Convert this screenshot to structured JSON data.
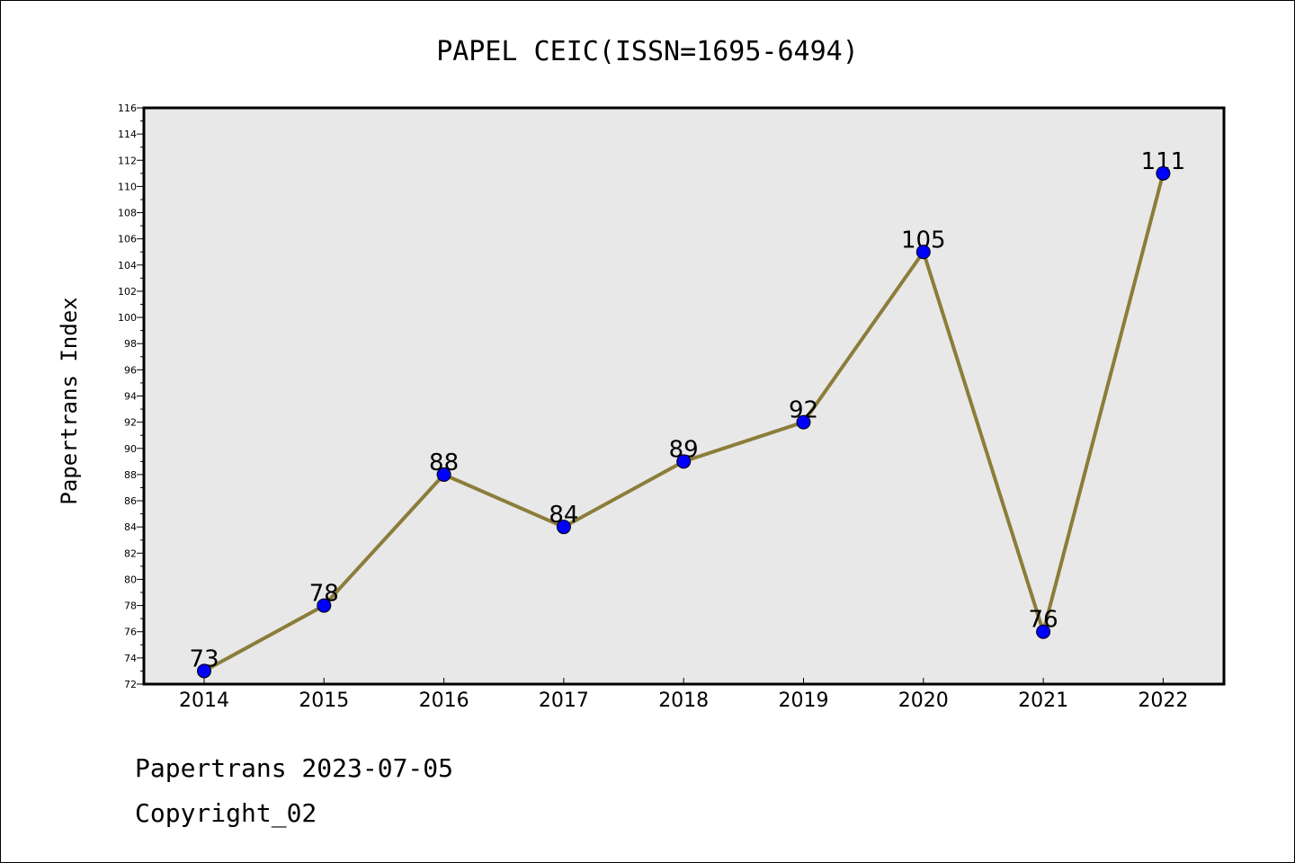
{
  "chart_data": {
    "type": "line",
    "title": "PAPEL CEIC(ISSN=1695-6494)",
    "xlabel": "",
    "ylabel": "Papertrans Index",
    "categories": [
      "2014",
      "2015",
      "2016",
      "2017",
      "2018",
      "2019",
      "2020",
      "2021",
      "2022"
    ],
    "series": [
      {
        "values": [
          73,
          78,
          88,
          84,
          89,
          92,
          105,
          76,
          111
        ]
      }
    ],
    "data_labels": [
      "73",
      "78",
      "88",
      "84",
      "89",
      "92",
      "105",
      "76",
      "111"
    ],
    "ylim": [
      72,
      116
    ],
    "ytick_step": 2,
    "grid": false,
    "legend": "none",
    "colors": {
      "line": "#8b7d3a",
      "marker": "#0000ff",
      "plot_bg": "#e8e8e8"
    }
  },
  "footer": {
    "line1": "Papertrans 2023-07-05",
    "line2": "Copyright_02"
  }
}
